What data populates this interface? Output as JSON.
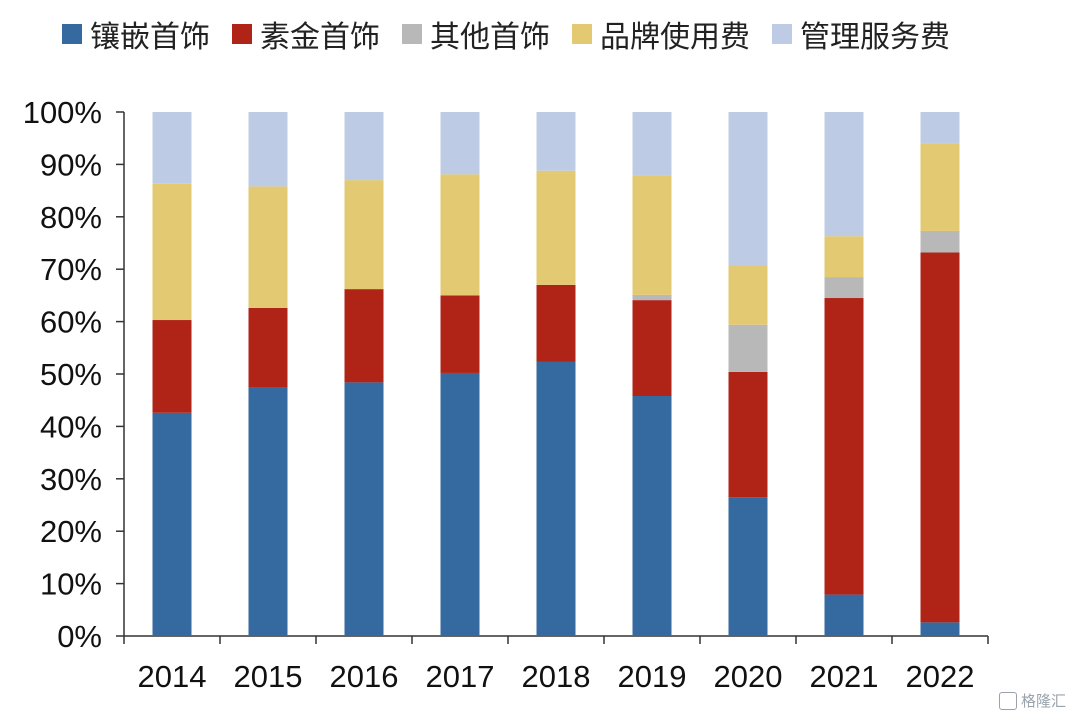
{
  "chart_data": {
    "type": "bar",
    "stacked": true,
    "title": "",
    "xlabel": "",
    "ylabel": "",
    "ylim": [
      0,
      100
    ],
    "yticks": [
      "0%",
      "10%",
      "20%",
      "30%",
      "40%",
      "50%",
      "60%",
      "70%",
      "80%",
      "90%",
      "100%"
    ],
    "categories": [
      "2014",
      "2015",
      "2016",
      "2017",
      "2018",
      "2019",
      "2020",
      "2021",
      "2022"
    ],
    "legend_position": "top",
    "grid": false,
    "series": [
      {
        "name": "镶嵌首饰",
        "color": "#346a9f",
        "values": [
          42.6,
          47.4,
          48.4,
          50.2,
          52.3,
          45.8,
          26.5,
          7.9,
          2.6
        ]
      },
      {
        "name": "素金首饰",
        "color": "#b02418",
        "values": [
          17.7,
          15.2,
          17.8,
          14.8,
          14.7,
          18.3,
          23.9,
          56.6,
          70.6
        ]
      },
      {
        "name": "其他首饰",
        "color": "#b8b8b8",
        "values": [
          0,
          0,
          0,
          0,
          0,
          1.0,
          9.0,
          4.0,
          4.1
        ]
      },
      {
        "name": "品牌使用费",
        "color": "#e2c972",
        "values": [
          26.0,
          23.2,
          20.8,
          23.1,
          21.8,
          22.8,
          11.3,
          7.8,
          16.6
        ]
      },
      {
        "name": "管理服务费",
        "color": "#bdcce4",
        "values": [
          13.7,
          14.2,
          13.0,
          11.9,
          11.2,
          12.1,
          29.3,
          23.7,
          6.1
        ]
      }
    ]
  },
  "watermark": {
    "text": "格隆汇"
  }
}
